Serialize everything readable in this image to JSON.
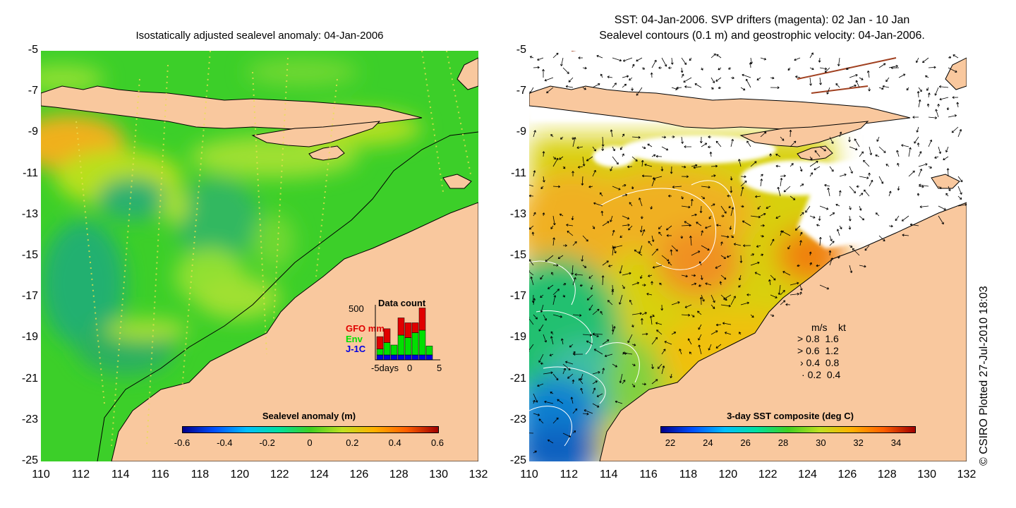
{
  "left_map": {
    "title": "Isostatically adjusted sealevel anomaly: 04-Jan-2006",
    "colorbar": {
      "title": "Sealevel anomaly (m)",
      "labels": [
        "-0.6",
        "-0.4",
        "-0.2",
        "0",
        "0.2",
        "0.4",
        "0.6"
      ]
    },
    "data_count": {
      "title": "Data count",
      "max_label": "500",
      "series": [
        {
          "label": "GFO mm",
          "color": "#e00000"
        },
        {
          "label": "Env",
          "color": "#00e000"
        },
        {
          "label": "J-1C",
          "color": "#0000e0"
        }
      ],
      "x_labels": [
        "-5days",
        "0",
        "5"
      ],
      "bars": [
        {
          "gfo": 0.25,
          "env": 0.12,
          "j1c": 0.1
        },
        {
          "gfo": 0.28,
          "env": 0.25,
          "j1c": 0.1
        },
        {
          "gfo": 0.0,
          "env": 0.2,
          "j1c": 0.1
        },
        {
          "gfo": 0.35,
          "env": 0.4,
          "j1c": 0.1
        },
        {
          "gfo": 0.3,
          "env": 0.35,
          "j1c": 0.1
        },
        {
          "gfo": 0.2,
          "env": 0.45,
          "j1c": 0.1
        },
        {
          "gfo": 0.45,
          "env": 0.5,
          "j1c": 0.1
        },
        {
          "gfo": 0.0,
          "env": 0.18,
          "j1c": 0.1
        }
      ]
    }
  },
  "right_map": {
    "title_line1": "SST: 04-Jan-2006. SVP drifters (magenta): 02 Jan - 10 Jan",
    "title_line2": "Sealevel contours (0.1 m) and geostrophic velocity: 04-Jan-2006.",
    "colorbar": {
      "title": "3-day SST composite (deg C)",
      "labels": [
        "22",
        "24",
        "26",
        "28",
        "30",
        "32",
        "34"
      ]
    },
    "velocity_legend": {
      "header_ms": "m/s",
      "header_kt": "kt",
      "rows": [
        {
          "ms": "0.8",
          "kt": "1.6"
        },
        {
          "ms": "0.6",
          "kt": "1.2"
        },
        {
          "ms": "0.4",
          "kt": "0.8"
        },
        {
          "ms": "0.2",
          "kt": "0.4"
        }
      ]
    }
  },
  "axes": {
    "lat_labels": [
      "-5",
      "-7",
      "-9",
      "-11",
      "-13",
      "-15",
      "-17",
      "-19",
      "-21",
      "-23",
      "-25"
    ],
    "lon_labels": [
      "110",
      "112",
      "114",
      "116",
      "118",
      "120",
      "122",
      "124",
      "126",
      "128",
      "130",
      "132"
    ]
  },
  "credit": "© CSIRO Plotted 27-Jul-2010 18:03",
  "colors": {
    "land": "#f9c89e",
    "sea_green": "#3ccf29",
    "sst_yellow": "#e8d20c"
  }
}
